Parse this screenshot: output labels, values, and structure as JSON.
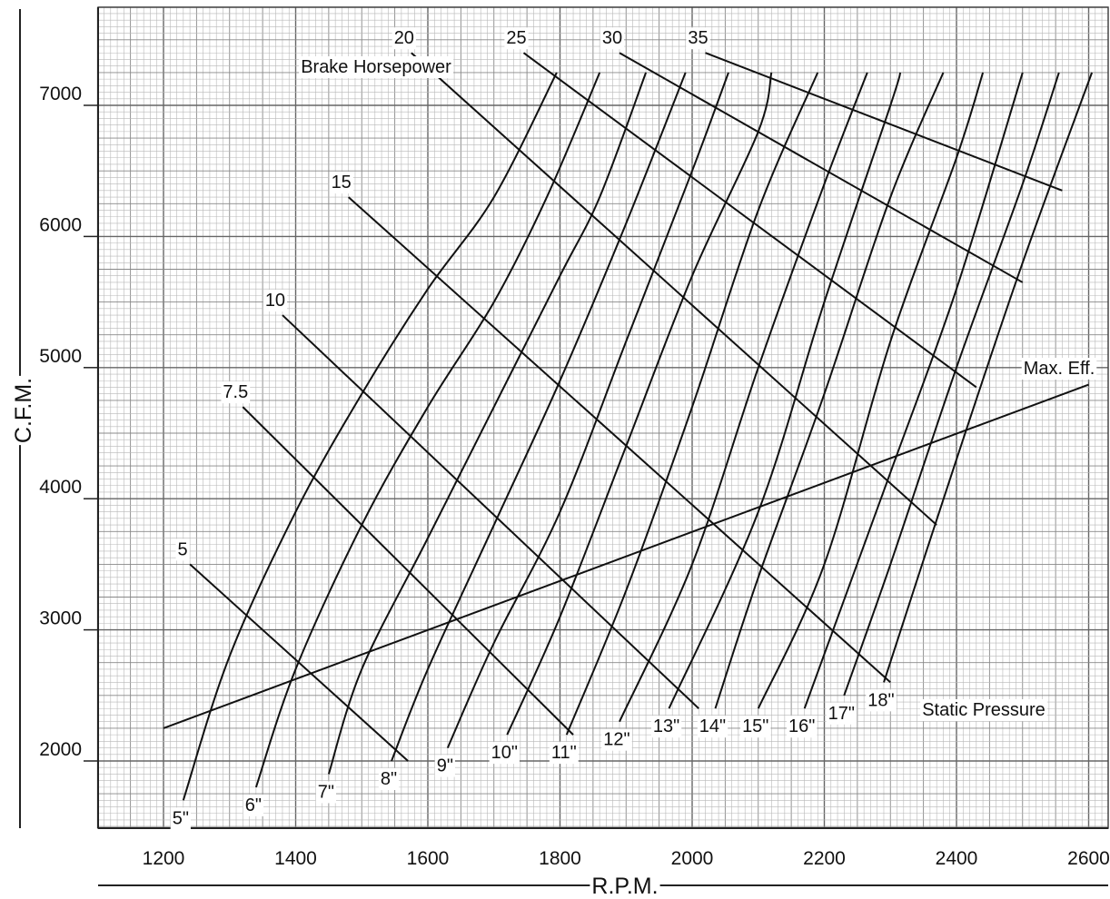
{
  "chart_data": {
    "type": "line",
    "title": "",
    "xlabel": "R.P.M.",
    "ylabel": "C.F.M.",
    "xlim": [
      1100,
      2620
    ],
    "ylim": [
      1500,
      7750
    ],
    "x_ticks": [
      1200,
      1400,
      1600,
      1800,
      2000,
      2200,
      2400,
      2600
    ],
    "y_ticks": [
      2000,
      3000,
      4000,
      5000,
      6000,
      7000
    ],
    "grid": true,
    "static_pressure_series_label": "Static Pressure",
    "horsepower_series_label": "Brake Horsepower",
    "max_eff_label": "Max. Eff.",
    "static_pressure_curves": [
      {
        "name": "5\"",
        "points": [
          [
            1230,
            1700
          ],
          [
            1300,
            2800
          ],
          [
            1400,
            3900
          ],
          [
            1500,
            4800
          ],
          [
            1600,
            5600
          ],
          [
            1700,
            6300
          ],
          [
            1795,
            7250
          ]
        ]
      },
      {
        "name": "6\"",
        "points": [
          [
            1340,
            1800
          ],
          [
            1400,
            2700
          ],
          [
            1500,
            3800
          ],
          [
            1600,
            4700
          ],
          [
            1700,
            5500
          ],
          [
            1780,
            6300
          ],
          [
            1860,
            7250
          ]
        ]
      },
      {
        "name": "7\"",
        "points": [
          [
            1450,
            1900
          ],
          [
            1500,
            2700
          ],
          [
            1600,
            3700
          ],
          [
            1700,
            4700
          ],
          [
            1800,
            5700
          ],
          [
            1860,
            6300
          ],
          [
            1930,
            7250
          ]
        ]
      },
      {
        "name": "8\"",
        "points": [
          [
            1545,
            2000
          ],
          [
            1600,
            2700
          ],
          [
            1700,
            3800
          ],
          [
            1800,
            4900
          ],
          [
            1900,
            6100
          ],
          [
            1990,
            7250
          ]
        ]
      },
      {
        "name": "9\"",
        "points": [
          [
            1630,
            2100
          ],
          [
            1700,
            2900
          ],
          [
            1800,
            3900
          ],
          [
            1900,
            5200
          ],
          [
            2000,
            6500
          ],
          [
            2055,
            7250
          ]
        ]
      },
      {
        "name": "10\"",
        "points": [
          [
            1720,
            2200
          ],
          [
            1800,
            3100
          ],
          [
            1900,
            4400
          ],
          [
            2000,
            5700
          ],
          [
            2100,
            6800
          ],
          [
            2120,
            7250
          ]
        ]
      },
      {
        "name": "11\"",
        "points": [
          [
            1810,
            2200
          ],
          [
            1900,
            3300
          ],
          [
            2000,
            4700
          ],
          [
            2100,
            6200
          ],
          [
            2190,
            7250
          ]
        ]
      },
      {
        "name": "12\"",
        "points": [
          [
            1890,
            2300
          ],
          [
            2000,
            3500
          ],
          [
            2100,
            5000
          ],
          [
            2200,
            6400
          ],
          [
            2265,
            7250
          ]
        ]
      },
      {
        "name": "13\"",
        "points": [
          [
            1965,
            2400
          ],
          [
            2100,
            3900
          ],
          [
            2200,
            5500
          ],
          [
            2300,
            7000
          ],
          [
            2315,
            7250
          ]
        ]
      },
      {
        "name": "14\"",
        "points": [
          [
            2035,
            2400
          ],
          [
            2100,
            3400
          ],
          [
            2200,
            4800
          ],
          [
            2300,
            6300
          ],
          [
            2380,
            7250
          ]
        ]
      },
      {
        "name": "15\"",
        "points": [
          [
            2100,
            2400
          ],
          [
            2200,
            3500
          ],
          [
            2300,
            5200
          ],
          [
            2400,
            6600
          ],
          [
            2440,
            7250
          ]
        ]
      },
      {
        "name": "16\"",
        "points": [
          [
            2170,
            2400
          ],
          [
            2300,
            4200
          ],
          [
            2400,
            5600
          ],
          [
            2500,
            7250
          ]
        ]
      },
      {
        "name": "17\"",
        "points": [
          [
            2230,
            2500
          ],
          [
            2300,
            3500
          ],
          [
            2400,
            5000
          ],
          [
            2500,
            6400
          ],
          [
            2555,
            7250
          ]
        ]
      },
      {
        "name": "18\"",
        "points": [
          [
            2290,
            2600
          ],
          [
            2400,
            4300
          ],
          [
            2500,
            5800
          ],
          [
            2605,
            7250
          ]
        ]
      }
    ],
    "horsepower_lines": [
      {
        "name": "5",
        "points": [
          [
            1240,
            3500
          ],
          [
            1570,
            2000
          ]
        ]
      },
      {
        "name": "7.5",
        "points": [
          [
            1320,
            4700
          ],
          [
            1820,
            2200
          ]
        ]
      },
      {
        "name": "10",
        "points": [
          [
            1380,
            5400
          ],
          [
            2010,
            2400
          ]
        ]
      },
      {
        "name": "15",
        "points": [
          [
            1480,
            6300
          ],
          [
            2300,
            2600
          ]
        ]
      },
      {
        "name": "20",
        "points": [
          [
            1575,
            7400
          ],
          [
            2370,
            3800
          ]
        ]
      },
      {
        "name": "25",
        "points": [
          [
            1745,
            7400
          ],
          [
            2430,
            4850
          ]
        ]
      },
      {
        "name": "30",
        "points": [
          [
            1890,
            7400
          ],
          [
            2500,
            5650
          ]
        ]
      },
      {
        "name": "35",
        "points": [
          [
            2020,
            7400
          ],
          [
            2560,
            6350
          ]
        ]
      }
    ],
    "max_efficiency_line": [
      [
        1200,
        2250
      ],
      [
        2600,
        4870
      ]
    ]
  }
}
